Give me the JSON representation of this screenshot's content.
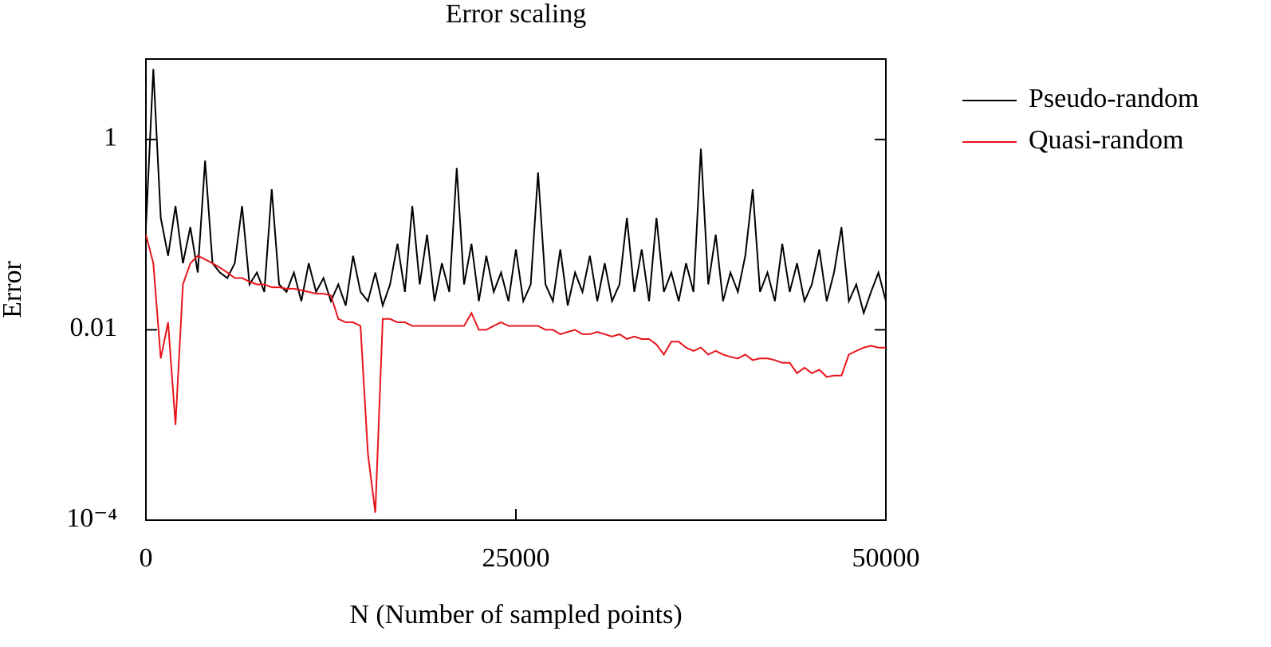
{
  "chart_data": {
    "type": "line",
    "title": "Error scaling",
    "xlabel": "N (Number of sampled points)",
    "ylabel": "Error",
    "log_y": true,
    "grid": false,
    "legend": "outside-right",
    "xlim": [
      0,
      50000
    ],
    "xticks": [
      0,
      25000,
      50000
    ],
    "ylim": [
      0.0001,
      7
    ],
    "yticks": [
      {
        "value": 0.0001,
        "label": "10⁻⁴"
      },
      0.01,
      1
    ],
    "x": [
      0,
      500,
      1000,
      1500,
      2000,
      2500,
      3000,
      3500,
      4000,
      4500,
      5000,
      5500,
      6000,
      6500,
      7000,
      7500,
      8000,
      8500,
      9000,
      9500,
      10000,
      10500,
      11000,
      11500,
      12000,
      12500,
      13000,
      13500,
      14000,
      14500,
      15000,
      15500,
      16000,
      16500,
      17000,
      17500,
      18000,
      18500,
      19000,
      19500,
      20000,
      20500,
      21000,
      21500,
      22000,
      22500,
      23000,
      23500,
      24000,
      24500,
      25000,
      25500,
      26000,
      26500,
      27000,
      27500,
      28000,
      28500,
      29000,
      29500,
      30000,
      30500,
      31000,
      31500,
      32000,
      32500,
      33000,
      33500,
      34000,
      34500,
      35000,
      35500,
      36000,
      36500,
      37000,
      37500,
      38000,
      38500,
      39000,
      39500,
      40000,
      40500,
      41000,
      41500,
      42000,
      42500,
      43000,
      43500,
      44000,
      44500,
      45000,
      45500,
      46000,
      46500,
      47000,
      47500,
      48000,
      48500,
      49000,
      49500,
      50000
    ],
    "series": [
      {
        "name": "Pseudo-random",
        "color": "#000000",
        "values": [
          0.12,
          5.5,
          0.15,
          0.06,
          0.2,
          0.05,
          0.12,
          0.04,
          0.6,
          0.05,
          0.04,
          0.035,
          0.05,
          0.2,
          0.03,
          0.04,
          0.025,
          0.3,
          0.03,
          0.025,
          0.04,
          0.02,
          0.05,
          0.025,
          0.035,
          0.02,
          0.03,
          0.018,
          0.06,
          0.025,
          0.02,
          0.04,
          0.018,
          0.03,
          0.08,
          0.025,
          0.2,
          0.03,
          0.1,
          0.02,
          0.05,
          0.025,
          0.5,
          0.03,
          0.08,
          0.02,
          0.06,
          0.025,
          0.04,
          0.02,
          0.07,
          0.02,
          0.03,
          0.45,
          0.03,
          0.02,
          0.07,
          0.018,
          0.04,
          0.025,
          0.06,
          0.02,
          0.05,
          0.02,
          0.03,
          0.15,
          0.025,
          0.07,
          0.02,
          0.15,
          0.025,
          0.04,
          0.02,
          0.05,
          0.025,
          0.8,
          0.03,
          0.1,
          0.02,
          0.04,
          0.025,
          0.06,
          0.3,
          0.025,
          0.04,
          0.02,
          0.08,
          0.025,
          0.05,
          0.02,
          0.03,
          0.07,
          0.02,
          0.04,
          0.12,
          0.02,
          0.03,
          0.015,
          0.025,
          0.04,
          0.02
        ]
      },
      {
        "name": "Quasi-random",
        "color": "#e8141c",
        "values": [
          0.1,
          0.05,
          0.005,
          0.012,
          0.001,
          0.03,
          0.05,
          0.06,
          0.055,
          0.05,
          0.045,
          0.04,
          0.035,
          0.035,
          0.032,
          0.03,
          0.03,
          0.028,
          0.028,
          0.027,
          0.027,
          0.026,
          0.025,
          0.024,
          0.024,
          0.023,
          0.013,
          0.012,
          0.012,
          0.011,
          0.0005,
          0.00012,
          0.013,
          0.013,
          0.012,
          0.012,
          0.011,
          0.011,
          0.011,
          0.011,
          0.011,
          0.011,
          0.011,
          0.011,
          0.015,
          0.01,
          0.01,
          0.011,
          0.012,
          0.011,
          0.011,
          0.011,
          0.011,
          0.011,
          0.01,
          0.01,
          0.009,
          0.0095,
          0.01,
          0.009,
          0.009,
          0.0095,
          0.009,
          0.0085,
          0.009,
          0.008,
          0.0085,
          0.008,
          0.008,
          0.007,
          0.0055,
          0.0075,
          0.0075,
          0.0065,
          0.006,
          0.0065,
          0.0055,
          0.006,
          0.0055,
          0.0052,
          0.005,
          0.0055,
          0.0048,
          0.005,
          0.005,
          0.0048,
          0.0045,
          0.0045,
          0.0035,
          0.004,
          0.0035,
          0.0038,
          0.0032,
          0.0033,
          0.0033,
          0.0055,
          0.006,
          0.0065,
          0.0068,
          0.0065,
          0.0065
        ]
      }
    ]
  }
}
